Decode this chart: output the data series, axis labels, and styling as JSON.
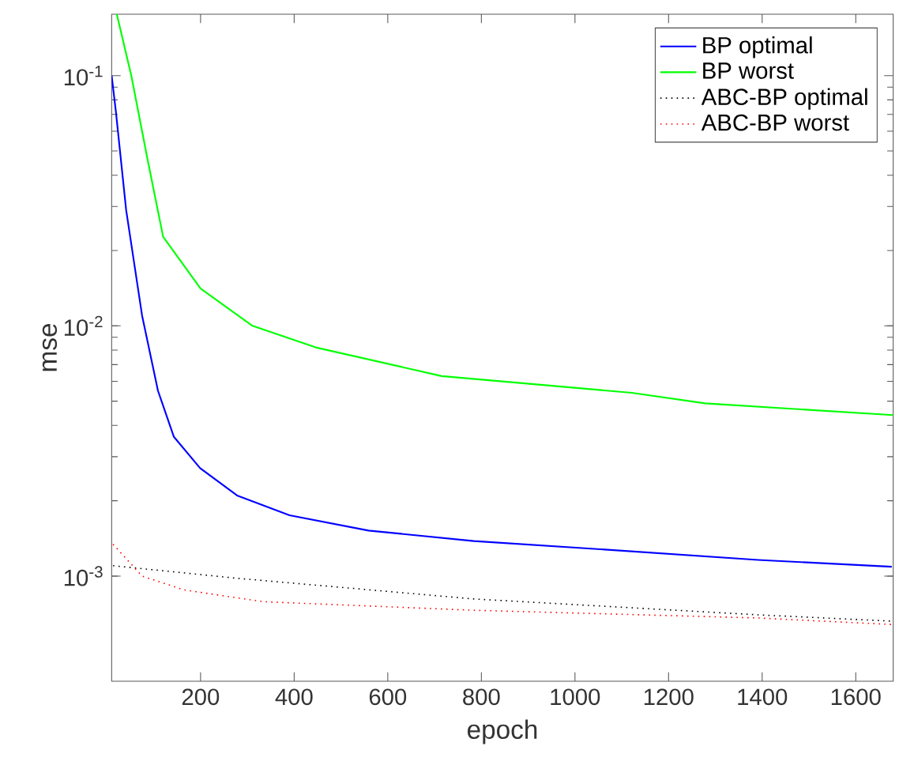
{
  "chart_data": {
    "type": "line",
    "xlabel": "epoch",
    "ylabel": "mse",
    "log": "y",
    "xlim": [
      10,
      1680
    ],
    "ylim": [
      0.00038,
      0.176
    ],
    "xticks": [
      200,
      400,
      600,
      800,
      1000,
      1200,
      1400,
      1600
    ],
    "yticks": [
      {
        "value": 0.001,
        "label": "10$^{-3}$"
      },
      {
        "value": 0.01,
        "label": "10$^{-2}$"
      },
      {
        "value": 0.1,
        "label": "10$^{-1}$"
      }
    ],
    "grid": false,
    "legend": "top right",
    "marker": "none",
    "series": [
      {
        "name": "BP optimal",
        "color": "#0000ff",
        "line_style": "solid",
        "x": [
          10,
          19,
          41,
          75,
          109,
          143,
          199,
          278,
          390,
          559,
          784,
          1054,
          1391,
          1677
        ],
        "values": [
          0.1,
          0.072,
          0.029,
          0.011,
          0.0055,
          0.0036,
          0.0027,
          0.0021,
          0.00175,
          0.00152,
          0.00138,
          0.00128,
          0.00116,
          0.00109
        ]
      },
      {
        "name": "BP worst",
        "color": "#00ff00",
        "line_style": "solid",
        "x": [
          21,
          52,
          86,
          120,
          200,
          311,
          446,
          715,
          1121,
          1278,
          1680
        ],
        "values": [
          0.176,
          0.1,
          0.047,
          0.0227,
          0.0141,
          0.01,
          0.0082,
          0.0063,
          0.0054,
          0.0049,
          0.0044
        ]
      },
      {
        "name": "ABC-BP optimal",
        "color": "#000000",
        "line_style": "dotted",
        "x": [
          13,
          278,
          784,
          1391,
          1680
        ],
        "values": [
          0.0011,
          0.00098,
          0.00081,
          0.0007,
          0.00066
        ]
      },
      {
        "name": "ABC-BP worst",
        "color": "#ff0000",
        "line_style": "dotted",
        "x": [
          13,
          75,
          165,
          334,
          784,
          1391,
          1680
        ],
        "values": [
          0.00134,
          0.001,
          0.00088,
          0.00079,
          0.00073,
          0.00068,
          0.00064
        ]
      }
    ]
  }
}
